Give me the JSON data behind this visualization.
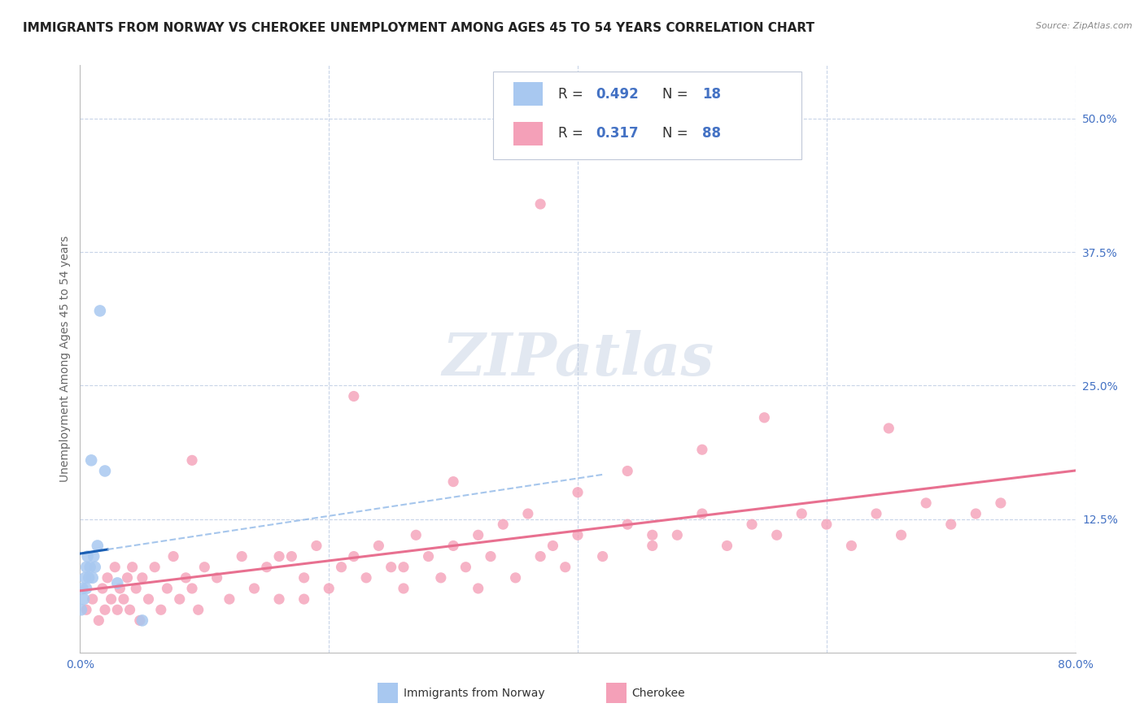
{
  "title": "IMMIGRANTS FROM NORWAY VS CHEROKEE UNEMPLOYMENT AMONG AGES 45 TO 54 YEARS CORRELATION CHART",
  "source": "Source: ZipAtlas.com",
  "ylabel": "Unemployment Among Ages 45 to 54 years",
  "xlim": [
    0.0,
    0.8
  ],
  "ylim": [
    0.0,
    0.55
  ],
  "xticks": [
    0.0,
    0.2,
    0.4,
    0.6,
    0.8
  ],
  "xticklabels": [
    "0.0%",
    "",
    "",
    "",
    "80.0%"
  ],
  "yticks": [
    0.0,
    0.125,
    0.25,
    0.375,
    0.5
  ],
  "yticklabels": [
    "",
    "12.5%",
    "25.0%",
    "37.5%",
    "50.0%"
  ],
  "norway_R": 0.492,
  "norway_N": 18,
  "cherokee_R": 0.317,
  "cherokee_N": 88,
  "norway_color": "#a8c8f0",
  "cherokee_color": "#f4a0b8",
  "norway_line_color": "#1a5fb4",
  "norway_dash_color": "#90b8e8",
  "cherokee_line_color": "#e87090",
  "norway_x": [
    0.001,
    0.002,
    0.003,
    0.004,
    0.005,
    0.005,
    0.006,
    0.007,
    0.008,
    0.009,
    0.01,
    0.011,
    0.012,
    0.014,
    0.016,
    0.02,
    0.03,
    0.05
  ],
  "norway_y": [
    0.04,
    0.06,
    0.05,
    0.07,
    0.06,
    0.08,
    0.09,
    0.07,
    0.08,
    0.18,
    0.07,
    0.09,
    0.08,
    0.1,
    0.32,
    0.17,
    0.065,
    0.03
  ],
  "cherokee_x": [
    0.005,
    0.01,
    0.015,
    0.018,
    0.02,
    0.022,
    0.025,
    0.028,
    0.03,
    0.032,
    0.035,
    0.038,
    0.04,
    0.042,
    0.045,
    0.048,
    0.05,
    0.055,
    0.06,
    0.065,
    0.07,
    0.075,
    0.08,
    0.085,
    0.09,
    0.095,
    0.1,
    0.11,
    0.12,
    0.13,
    0.14,
    0.15,
    0.16,
    0.17,
    0.18,
    0.19,
    0.2,
    0.21,
    0.22,
    0.23,
    0.24,
    0.25,
    0.26,
    0.27,
    0.28,
    0.29,
    0.3,
    0.31,
    0.32,
    0.33,
    0.34,
    0.35,
    0.36,
    0.37,
    0.38,
    0.39,
    0.4,
    0.42,
    0.44,
    0.46,
    0.48,
    0.5,
    0.52,
    0.54,
    0.56,
    0.58,
    0.6,
    0.62,
    0.64,
    0.66,
    0.68,
    0.7,
    0.72,
    0.74,
    0.37,
    0.55,
    0.65,
    0.22,
    0.3,
    0.18,
    0.44,
    0.5,
    0.26,
    0.32,
    0.4,
    0.46,
    0.16,
    0.09
  ],
  "cherokee_y": [
    0.04,
    0.05,
    0.03,
    0.06,
    0.04,
    0.07,
    0.05,
    0.08,
    0.04,
    0.06,
    0.05,
    0.07,
    0.04,
    0.08,
    0.06,
    0.03,
    0.07,
    0.05,
    0.08,
    0.04,
    0.06,
    0.09,
    0.05,
    0.07,
    0.06,
    0.04,
    0.08,
    0.07,
    0.05,
    0.09,
    0.06,
    0.08,
    0.05,
    0.09,
    0.07,
    0.1,
    0.06,
    0.08,
    0.09,
    0.07,
    0.1,
    0.08,
    0.06,
    0.11,
    0.09,
    0.07,
    0.1,
    0.08,
    0.11,
    0.09,
    0.12,
    0.07,
    0.13,
    0.09,
    0.1,
    0.08,
    0.11,
    0.09,
    0.12,
    0.1,
    0.11,
    0.13,
    0.1,
    0.12,
    0.11,
    0.13,
    0.12,
    0.1,
    0.13,
    0.11,
    0.14,
    0.12,
    0.13,
    0.14,
    0.42,
    0.22,
    0.21,
    0.24,
    0.16,
    0.05,
    0.17,
    0.19,
    0.08,
    0.06,
    0.15,
    0.11,
    0.09,
    0.18
  ],
  "watermark_text": "ZIPatlas",
  "background_color": "#ffffff",
  "grid_color": "#c8d4e8",
  "title_fontsize": 11,
  "tick_color": "#4472c4",
  "tick_fontsize": 10,
  "ylabel_fontsize": 10,
  "legend_box_color": "#e8eef8"
}
